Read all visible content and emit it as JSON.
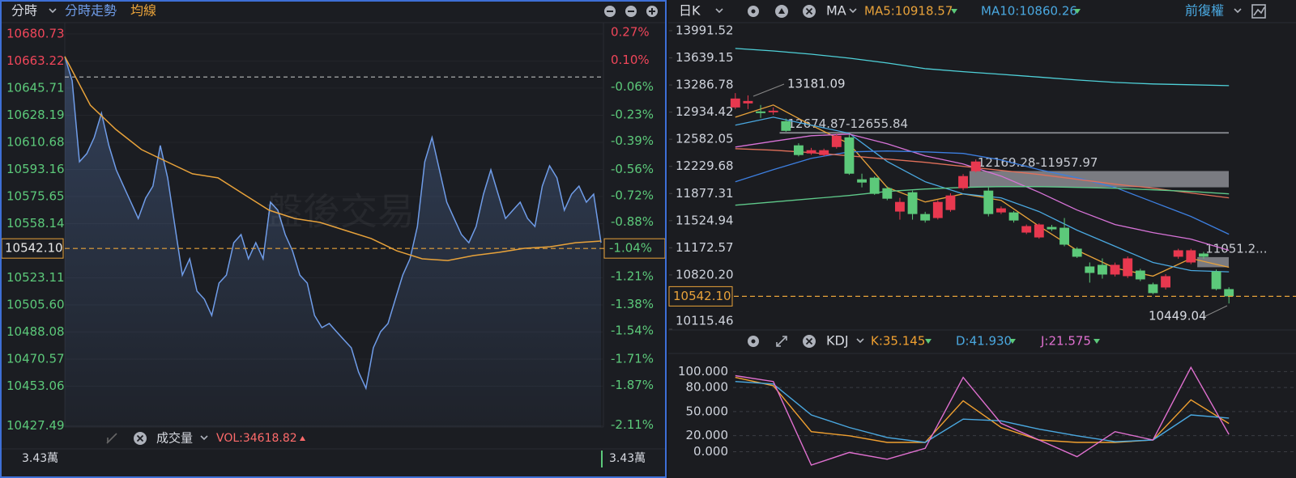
{
  "intraday": {
    "tab": "分時",
    "title": "分時走勢",
    "avg_label": "均線",
    "watermark": "盤後交易",
    "ylim": [
      10426.7,
      10688.0
    ],
    "y2lim": [
      -2.123,
      0.329
    ],
    "yticks": [
      10680.73,
      10663.22,
      10645.71,
      10628.19,
      10610.68,
      10593.16,
      10575.65,
      10558.14,
      10523.11,
      {
        "value": 10505.6,
        "label": "10505.60"
      },
      10488.08,
      10470.57,
      10453.06,
      10427.49
    ],
    "y2ticks": [
      {
        "value": 0.27,
        "label": "0.27%"
      },
      {
        "value": 0.1,
        "label": "0.10%"
      },
      {
        "value": -0.06,
        "label": "-0.06%"
      },
      {
        "value": -0.23,
        "label": "-0.23%"
      },
      {
        "value": -0.39,
        "label": "-0.39%"
      },
      {
        "value": -0.56,
        "label": "-0.56%"
      },
      {
        "value": -0.72,
        "label": "-0.72%"
      },
      {
        "value": -0.88,
        "label": "-0.88%"
      },
      {
        "value": -1.21,
        "label": "-1.21%"
      },
      {
        "value": -1.38,
        "label": "-1.38%"
      },
      {
        "value": -1.54,
        "label": "-1.54%"
      },
      {
        "value": -1.71,
        "label": "-1.71%"
      },
      {
        "value": -1.87,
        "label": "-1.87%"
      },
      {
        "value": -2.11,
        "label": "-2.11%"
      }
    ],
    "current": {
      "value": 10542.1,
      "label": "10542.10"
    },
    "current_pct": {
      "value": -1.04,
      "label": "-1.04%"
    },
    "prev_close": 10652.9,
    "line_color": "#6f9ce8",
    "avg_color": "#e8a23a",
    "price": [
      10666.1,
      10650.4,
      10598.1,
      10603.4,
      10613.8,
      10629.5,
      10608.6,
      10592.9,
      10582.4,
      10572.0,
      10561.5,
      10574.6,
      10582.4,
      10608.6,
      10587.7,
      10556.3,
      10524.9,
      10535.4,
      10514.5,
      10509.3,
      10498.8,
      10519.7,
      10524.9,
      10545.8,
      10551.1,
      10535.4,
      10545.8,
      10535.4,
      10572.0,
      10566.8,
      10551.1,
      10540.6,
      10524.9,
      10519.7,
      10498.8,
      10491.0,
      10493.6,
      10488.3,
      10483.1,
      10477.9,
      10462.2,
      10451.8,
      10477.9,
      10488.3,
      10493.6,
      10509.3,
      10524.9,
      10535.4,
      10556.3,
      10598.1,
      10613.8,
      10592.9,
      10572.0,
      10561.5,
      10551.1,
      10545.8,
      10556.3,
      10577.2,
      10592.9,
      10577.2,
      10561.5,
      10566.8,
      10572.0,
      10561.5,
      10556.3,
      10582.4,
      10595.5,
      10587.7,
      10566.8,
      10577.2,
      10582.4,
      10572.0,
      10577.2,
      10545.8
    ],
    "avg": [
      10666.1,
      10634.7,
      10619.0,
      10606.0,
      10598.1,
      10590.3,
      10587.7,
      10577.2,
      10566.8,
      10561.5,
      10558.9,
      10553.7,
      10548.5,
      10540.6,
      10535.4,
      10534.3,
      10537.5,
      10539.6,
      10542.2,
      10543.2,
      10545.8,
      10546.9
    ]
  },
  "volume": {
    "label": "成交量",
    "vol": "VOL:34618.82",
    "left": "3.43萬",
    "right": "3.43萬"
  },
  "daily": {
    "period": "日K",
    "ma": "MA",
    "ma5": "MA5:10918.57",
    "ma10": "MA10:10860.26",
    "adjust": "前復權",
    "ylim": [
      10115.46,
      14096.4
    ],
    "yticks": [
      13991.52,
      13639.15,
      13286.78,
      12934.42,
      12582.05,
      12229.68,
      11877.31,
      11524.94,
      11172.57,
      {
        "value": 10820.2,
        "label": "10820.20"
      },
      10115.46
    ],
    "current": {
      "value": 10542.1,
      "label": "10542.10"
    },
    "up_color": "#e8384f",
    "down_color": "#5cc97a",
    "high_label": 13181.09,
    "low_label": 10449.04,
    "candles": [
      [
        12995,
        13181.09,
        12974,
        13111
      ],
      [
        13048,
        13152,
        12974,
        13079
      ],
      [
        12943,
        13027,
        12859,
        12922
      ],
      [
        12932,
        12995,
        12900,
        12953
      ],
      [
        12817,
        12850,
        12680,
        12691
      ],
      [
        12503,
        12530,
        12360,
        12377
      ],
      [
        12398,
        12470,
        12380,
        12440
      ],
      [
        12377,
        12460,
        12360,
        12440
      ],
      [
        12481,
        12650,
        12460,
        12628
      ],
      [
        12607,
        12640,
        12120,
        12135
      ],
      [
        12062,
        12135,
        11957,
        12020
      ],
      [
        12083,
        12100,
        11860,
        11873
      ],
      [
        11946,
        11970,
        11790,
        11810
      ],
      [
        11643,
        11821,
        11538,
        11768
      ],
      [
        11894,
        11915,
        11538,
        11611
      ],
      [
        11611,
        11640,
        11500,
        11527
      ],
      [
        11559,
        11790,
        11540,
        11768
      ],
      [
        11663,
        11880,
        11640,
        11852
      ],
      [
        11946,
        12130,
        11920,
        12104
      ],
      [
        12167,
        12320,
        12150,
        12293
      ],
      [
        11915,
        11957,
        11580,
        11611
      ],
      [
        11632,
        11710,
        11610,
        11685
      ],
      [
        11632,
        11650,
        11500,
        11527
      ],
      [
        11370,
        11475,
        11350,
        11454
      ],
      [
        11307,
        11490,
        11290,
        11475
      ],
      [
        11443,
        11470,
        11390,
        11412
      ],
      [
        11433,
        11559,
        11192,
        11213
      ],
      [
        11161,
        11180,
        11040,
        11056
      ],
      [
        10930,
        10982,
        10720,
        10846
      ],
      [
        10951,
        11035,
        10772,
        10825
      ],
      [
        10825,
        10980,
        10800,
        10951
      ],
      [
        10804,
        11060,
        10780,
        11035
      ],
      [
        10877,
        10900,
        10740,
        10762
      ],
      [
        10699,
        10720,
        10570,
        10584
      ],
      [
        10657,
        10830,
        10630,
        10804
      ],
      [
        11056,
        11160,
        11030,
        11140
      ],
      [
        10982,
        11160,
        10960,
        11140
      ],
      [
        11098,
        11120,
        11030,
        11056
      ],
      [
        10867,
        10890,
        10620,
        10636
      ],
      [
        10636,
        10660,
        10449.04,
        10542.1
      ]
    ],
    "ma_x": [
      0,
      3,
      6,
      9,
      12,
      15,
      18,
      21,
      24,
      27,
      30,
      33,
      36,
      39
    ],
    "ma_lines": [
      {
        "color": "#4fd1d9",
        "values": [
          13761,
          13729,
          13687,
          13635,
          13572,
          13499,
          13460,
          13425,
          13390,
          13352,
          13320,
          13300,
          13290,
          13278
        ]
      },
      {
        "color": "#e8a23a",
        "values": [
          12869,
          13027,
          12765,
          12523,
          11957,
          11768,
          11873,
          11789,
          11454,
          11140,
          10908,
          10804,
          11035,
          10918.57
        ]
      },
      {
        "color": "#4aa8e0",
        "values": [
          12765,
          12869,
          12765,
          12660,
          12293,
          12030,
          11873,
          11821,
          11643,
          11401,
          11192,
          10982,
          10877,
          10860.26
        ]
      },
      {
        "color": "#d873d8",
        "values": [
          12481,
          12555,
          12628,
          12649,
          12523,
          12366,
          12261,
          12104,
          11894,
          11663,
          11475,
          11370,
          11286,
          11140
        ]
      },
      {
        "color": "#3d7fe0",
        "values": [
          12030,
          12188,
          12335,
          12418,
          12429,
          12418,
          12398,
          12314,
          12188,
          12083,
          11957,
          11768,
          11580,
          11349
        ]
      },
      {
        "color": "#e0705a",
        "values": [
          12460,
          12440,
          12408,
          12366,
          12324,
          12282,
          12230,
          12177,
          12125,
          12062,
          11999,
          11946,
          11884,
          11821
        ]
      },
      {
        "color": "#5fc98a",
        "values": [
          11726,
          11768,
          11810,
          11852,
          11904,
          11936,
          11957,
          11967,
          11967,
          11957,
          11946,
          11925,
          11904,
          11873
        ]
      }
    ],
    "zones": [
      {
        "label": "12674.87-12655.84",
        "top": 12674.87,
        "bottom": 12655.84,
        "start": 4
      },
      {
        "label": "12169.28-11957.97",
        "top": 12169.28,
        "bottom": 11957.97,
        "start": 19
      },
      {
        "label": "11051.2...",
        "top": 11051.2,
        "bottom": 10920,
        "start": 37
      }
    ]
  },
  "kdj": {
    "name": "KDJ",
    "k": "K:35.145",
    "d": "D:41.930",
    "j": "J:21.575",
    "ylim": [
      -16.7,
      109.4
    ],
    "yticks": [
      {
        "value": 100,
        "label": "100.000"
      },
      {
        "value": 80,
        "label": "80.000"
      },
      {
        "value": 50,
        "label": "50.000"
      },
      {
        "value": 20,
        "label": "20.000"
      },
      {
        "value": 0,
        "label": "0.000"
      }
    ],
    "series": [
      {
        "color": "#f0a030",
        "values": [
          92.7,
          82.3,
          25.0,
          19.8,
          11.5,
          11.5,
          63.5,
          30.2,
          14.6,
          11.5,
          11.5,
          14.6,
          64.6,
          35.145
        ]
      },
      {
        "color": "#4aa8e0",
        "values": [
          87.5,
          84.4,
          45.8,
          30.2,
          17.7,
          11.5,
          40.6,
          38.5,
          28.1,
          19.8,
          12.5,
          14.6,
          45.8,
          41.93
        ]
      },
      {
        "color": "#e070d0",
        "values": [
          94.8,
          87.5,
          -16.7,
          -1.0,
          -9.4,
          4.2,
          92.7,
          35.4,
          14.6,
          -6.3,
          25.0,
          14.6,
          105.2,
          21.575
        ]
      }
    ]
  }
}
